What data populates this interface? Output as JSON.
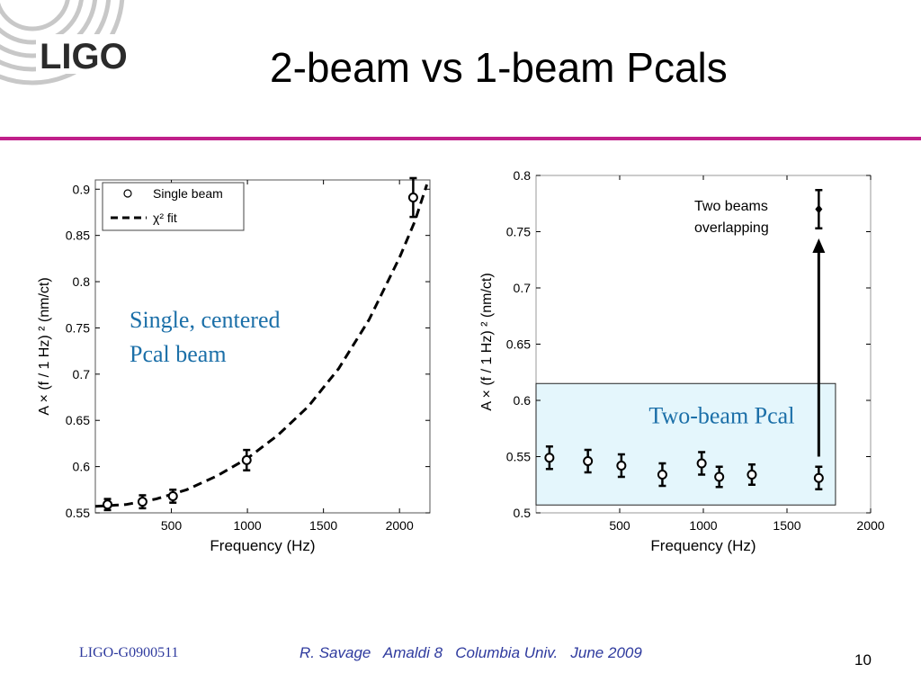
{
  "slide": {
    "logo_text": "LIGO",
    "title": "2-beam vs 1-beam Pcals",
    "footer_id": "LIGO-G0900511",
    "footer_credit": "R. Savage   Amaldi 8   Columbia Univ.   June 2009",
    "page_number": "10",
    "colors": {
      "title_rule": "#c0208a",
      "footer": "#2e3a9e",
      "annotation_text": "#1b6fa8",
      "highlight_box": "#e4f6fc"
    }
  },
  "chart_data": [
    {
      "type": "scatter",
      "xlabel": "Frequency (Hz)",
      "ylabel": "A × (f / 1 Hz) ² (nm/ct)",
      "xlim": [
        0,
        2200
      ],
      "ylim": [
        0.55,
        0.91
      ],
      "xticks": [
        500,
        1000,
        1500,
        2000
      ],
      "yticks": [
        0.55,
        0.6,
        0.65,
        0.7,
        0.75,
        0.8,
        0.85,
        0.9
      ],
      "grid": false,
      "legend": {
        "placement": "top-left",
        "entries": [
          "Single beam",
          "χ² fit"
        ]
      },
      "annotation": {
        "lines": [
          "Single, centered",
          "Pcal beam"
        ]
      },
      "series": [
        {
          "name": "Single beam",
          "marker": "circle",
          "points": [
            {
              "x": 80,
              "y": 0.559,
              "err": 0.006
            },
            {
              "x": 310,
              "y": 0.562,
              "err": 0.007
            },
            {
              "x": 510,
              "y": 0.568,
              "err": 0.007
            },
            {
              "x": 995,
              "y": 0.607,
              "err": 0.011
            },
            {
              "x": 2090,
              "y": 0.891,
              "err": 0.021
            }
          ]
        },
        {
          "name": "χ² fit",
          "style": "dashed",
          "points": [
            {
              "x": 0,
              "y": 0.557
            },
            {
              "x": 200,
              "y": 0.559
            },
            {
              "x": 400,
              "y": 0.565
            },
            {
              "x": 600,
              "y": 0.575
            },
            {
              "x": 800,
              "y": 0.59
            },
            {
              "x": 1000,
              "y": 0.609
            },
            {
              "x": 1200,
              "y": 0.634
            },
            {
              "x": 1400,
              "y": 0.665
            },
            {
              "x": 1600,
              "y": 0.706
            },
            {
              "x": 1800,
              "y": 0.759
            },
            {
              "x": 2000,
              "y": 0.826
            },
            {
              "x": 2100,
              "y": 0.865
            },
            {
              "x": 2180,
              "y": 0.905
            }
          ]
        }
      ]
    },
    {
      "type": "scatter",
      "xlabel": "Frequency (Hz)",
      "ylabel": "A × (f / 1 Hz) ² (nm/ct)",
      "xlim": [
        0,
        2000
      ],
      "ylim": [
        0.5,
        0.8
      ],
      "xticks": [
        500,
        1000,
        1500,
        2000
      ],
      "yticks": [
        0.5,
        0.55,
        0.6,
        0.65,
        0.7,
        0.75,
        0.8
      ],
      "grid": false,
      "annotation": {
        "lines": [
          "Two beams",
          "overlapping"
        ]
      },
      "highlight": {
        "label": "Two-beam Pcal",
        "x_range": [
          0,
          1790
        ],
        "y_range": [
          0.507,
          0.615
        ]
      },
      "arrow": {
        "x": 1690,
        "from_y": 0.55,
        "to_y": 0.744
      },
      "series": [
        {
          "name": "Two-beam Pcal",
          "marker": "circle",
          "points": [
            {
              "x": 80,
              "y": 0.549,
              "err": 0.01
            },
            {
              "x": 310,
              "y": 0.546,
              "err": 0.01
            },
            {
              "x": 510,
              "y": 0.542,
              "err": 0.01
            },
            {
              "x": 755,
              "y": 0.534,
              "err": 0.01
            },
            {
              "x": 990,
              "y": 0.544,
              "err": 0.01
            },
            {
              "x": 1095,
              "y": 0.532,
              "err": 0.009
            },
            {
              "x": 1290,
              "y": 0.534,
              "err": 0.009
            },
            {
              "x": 1690,
              "y": 0.531,
              "err": 0.01
            }
          ]
        },
        {
          "name": "Two beams overlapping",
          "marker": "diamond",
          "points": [
            {
              "x": 1690,
              "y": 0.77,
              "err": 0.017
            }
          ]
        }
      ]
    }
  ]
}
